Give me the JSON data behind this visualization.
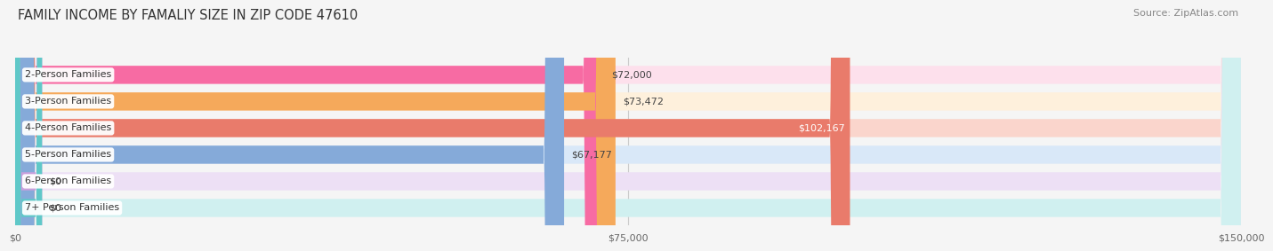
{
  "title": "FAMILY INCOME BY FAMALIY SIZE IN ZIP CODE 47610",
  "source": "Source: ZipAtlas.com",
  "categories": [
    "2-Person Families",
    "3-Person Families",
    "4-Person Families",
    "5-Person Families",
    "6-Person Families",
    "7+ Person Families"
  ],
  "values": [
    72000,
    73472,
    102167,
    67177,
    0,
    0
  ],
  "bar_colors": [
    "#F76BA3",
    "#F5A95B",
    "#E97B6B",
    "#85AAD9",
    "#C9A0DC",
    "#5FC8C8"
  ],
  "bar_bg_colors": [
    "#FDE0EC",
    "#FEF0DC",
    "#FAD5CC",
    "#D9E8F8",
    "#EDE0F5",
    "#D0F0F0"
  ],
  "value_labels": [
    "$72,000",
    "$73,472",
    "$102,167",
    "$67,177",
    "$0",
    "$0"
  ],
  "value_inside": [
    false,
    false,
    true,
    false,
    false,
    false
  ],
  "xlim": [
    0,
    150000
  ],
  "xtick_labels": [
    "$0",
    "$75,000",
    "$150,000"
  ],
  "xtick_values": [
    0,
    75000,
    150000
  ],
  "background_color": "#f5f5f5",
  "bar_height": 0.68,
  "title_fontsize": 10.5,
  "label_fontsize": 8.0,
  "value_fontsize": 8.0,
  "source_fontsize": 8.0
}
